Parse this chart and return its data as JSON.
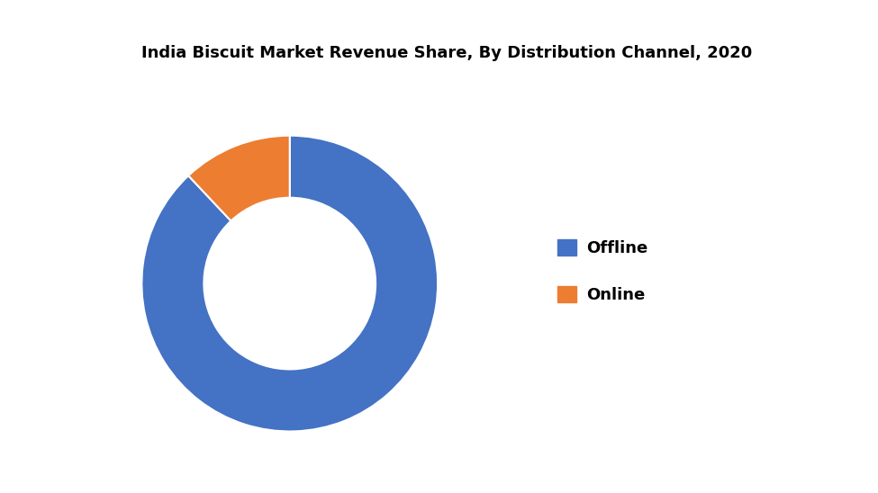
{
  "title": "India Biscuit Market Revenue Share, By Distribution Channel, 2020",
  "segments": [
    "Offline",
    "Online"
  ],
  "values": [
    88,
    12
  ],
  "colors": [
    "#4472C4",
    "#ED7D31"
  ],
  "background_color": "#FFFFFF",
  "title_bg_color": "#D3D3D3",
  "donut_width": 0.42,
  "start_angle": 90,
  "legend_labels": [
    "Offline",
    "Online"
  ],
  "title_fontsize": 13,
  "legend_fontsize": 13
}
